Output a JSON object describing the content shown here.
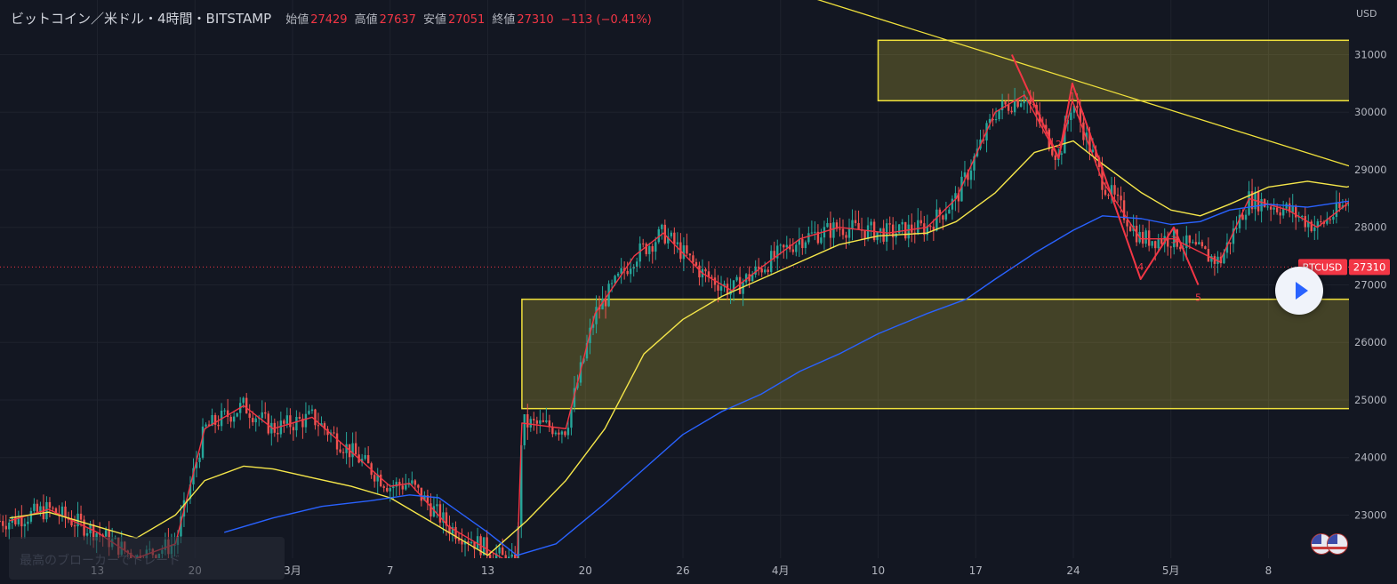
{
  "header": {
    "symbol": "ビットコイン／米ドル・4時間・BITSTAMP",
    "open_label": "始値",
    "open": "27429",
    "high_label": "高値",
    "high": "27637",
    "low_label": "安値",
    "low": "27051",
    "close_label": "終値",
    "close": "27310",
    "change": "−113 (−0.41%)"
  },
  "axis_currency": "USD",
  "price_tag": {
    "symbol": "BTCUSD",
    "value": "27310"
  },
  "watermark_text": "最高のブローカーでトレード",
  "colors": {
    "background": "#131722",
    "grid": "#1e222d",
    "up": "#26a69a",
    "down": "#ef5350",
    "ema_short": "#f23645",
    "ema_mid": "#f5e64a",
    "ema_long": "#2962ff",
    "zone": "#f0e13c",
    "trendline": "#f0e13c",
    "wave_label": "#f23645",
    "price_tag": "#f23645"
  },
  "icons": [
    "play-icon",
    "us-flag-icon"
  ],
  "chart_data": {
    "type": "candlestick",
    "y_ticks": [
      "23000",
      "24000",
      "25000",
      "26000",
      "27000",
      "28000",
      "29000",
      "30000",
      "31000"
    ],
    "ylim": [
      22250,
      31950
    ],
    "x_ticks": [
      "13",
      "20",
      "3月",
      "7",
      "13",
      "20",
      "26",
      "4月",
      "10",
      "17",
      "24",
      "5月",
      "8"
    ],
    "current_price": 27310,
    "zones": [
      {
        "from_x": 8.0,
        "to_x": 14.5,
        "low": 30200,
        "high": 31250
      },
      {
        "from_x": 4.35,
        "to_x": 14.5,
        "low": 24850,
        "high": 26750
      }
    ],
    "trendline": {
      "x1": 7.3,
      "y1": 32000,
      "x2": 14.4,
      "y2": 28230
    },
    "wave": {
      "points": [
        [
          9.37,
          31000
        ],
        [
          9.85,
          29200
        ],
        [
          9.99,
          30500
        ],
        [
          10.69,
          27100
        ],
        [
          11.03,
          28000
        ],
        [
          11.28,
          27000
        ]
      ],
      "labels": [
        "2",
        "1",
        "4",
        "3",
        "5"
      ]
    },
    "series": [
      {
        "name": "",
        "points": [
          [
            -0.9,
            22900
          ],
          [
            -0.5,
            23100
          ],
          [
            0,
            22700
          ],
          [
            0.4,
            22250
          ],
          [
            0.8,
            22500
          ],
          [
            1.1,
            24500
          ],
          [
            1.5,
            24900
          ],
          [
            1.8,
            24500
          ],
          [
            2.2,
            24700
          ],
          [
            2.6,
            24100
          ],
          [
            3.0,
            23500
          ],
          [
            3.2,
            23550
          ],
          [
            3.6,
            22800
          ],
          [
            4.0,
            22400
          ],
          [
            4.3,
            22100
          ],
          [
            4.35,
            24600
          ],
          [
            4.8,
            24500
          ],
          [
            5.1,
            26500
          ],
          [
            5.5,
            27500
          ],
          [
            5.8,
            27900
          ],
          [
            6.2,
            27200
          ],
          [
            6.5,
            26900
          ],
          [
            6.8,
            27300
          ],
          [
            7.2,
            27800
          ],
          [
            7.6,
            28000
          ],
          [
            8.1,
            27900
          ],
          [
            8.5,
            28000
          ],
          [
            8.8,
            28500
          ],
          [
            9.2,
            30000
          ],
          [
            9.5,
            30300
          ],
          [
            9.85,
            29200
          ],
          [
            9.99,
            30200
          ],
          [
            10.3,
            28800
          ],
          [
            10.69,
            27800
          ],
          [
            11.03,
            27800
          ],
          [
            11.5,
            27400
          ],
          [
            11.8,
            28500
          ],
          [
            12.2,
            28300
          ],
          [
            12.5,
            28000
          ],
          [
            12.8,
            28400
          ],
          [
            13.1,
            28900
          ],
          [
            13.4,
            28300
          ],
          [
            13.7,
            27400
          ],
          [
            14.0,
            27310
          ]
        ]
      },
      {
        "name": "",
        "points": [
          [
            -0.9,
            22950
          ],
          [
            -0.5,
            23050
          ],
          [
            0,
            22800
          ],
          [
            0.4,
            22600
          ],
          [
            0.8,
            23000
          ],
          [
            1.1,
            23600
          ],
          [
            1.5,
            23850
          ],
          [
            1.8,
            23800
          ],
          [
            2.2,
            23650
          ],
          [
            2.6,
            23500
          ],
          [
            3.0,
            23300
          ],
          [
            3.3,
            23000
          ],
          [
            3.7,
            22600
          ],
          [
            4.0,
            22300
          ],
          [
            4.4,
            22900
          ],
          [
            4.8,
            23600
          ],
          [
            5.2,
            24500
          ],
          [
            5.6,
            25800
          ],
          [
            6.0,
            26400
          ],
          [
            6.4,
            26800
          ],
          [
            6.8,
            27100
          ],
          [
            7.2,
            27400
          ],
          [
            7.6,
            27700
          ],
          [
            8.0,
            27850
          ],
          [
            8.5,
            27900
          ],
          [
            8.8,
            28100
          ],
          [
            9.2,
            28600
          ],
          [
            9.6,
            29300
          ],
          [
            10.0,
            29500
          ],
          [
            10.3,
            29100
          ],
          [
            10.7,
            28600
          ],
          [
            11.0,
            28300
          ],
          [
            11.3,
            28200
          ],
          [
            11.6,
            28400
          ],
          [
            12.0,
            28700
          ],
          [
            12.4,
            28800
          ],
          [
            12.8,
            28700
          ],
          [
            13.2,
            28850
          ],
          [
            13.6,
            28600
          ],
          [
            14.0,
            28300
          ]
        ]
      },
      {
        "name": "",
        "points": [
          [
            1.3,
            22700
          ],
          [
            1.8,
            22950
          ],
          [
            2.3,
            23150
          ],
          [
            2.8,
            23250
          ],
          [
            3.2,
            23350
          ],
          [
            3.5,
            23300
          ],
          [
            4.0,
            22700
          ],
          [
            4.3,
            22300
          ],
          [
            4.7,
            22500
          ],
          [
            5.2,
            23200
          ],
          [
            5.6,
            23800
          ],
          [
            6.0,
            24400
          ],
          [
            6.4,
            24800
          ],
          [
            6.8,
            25100
          ],
          [
            7.2,
            25500
          ],
          [
            7.6,
            25800
          ],
          [
            8.0,
            26150
          ],
          [
            8.5,
            26500
          ],
          [
            8.9,
            26750
          ],
          [
            9.2,
            27100
          ],
          [
            9.6,
            27550
          ],
          [
            10.0,
            27950
          ],
          [
            10.3,
            28200
          ],
          [
            10.7,
            28150
          ],
          [
            11.0,
            28050
          ],
          [
            11.3,
            28100
          ],
          [
            11.6,
            28300
          ],
          [
            12.0,
            28400
          ],
          [
            12.4,
            28350
          ],
          [
            12.8,
            28450
          ],
          [
            13.2,
            28500
          ],
          [
            13.6,
            28450
          ],
          [
            14.0,
            28300
          ]
        ]
      }
    ]
  }
}
